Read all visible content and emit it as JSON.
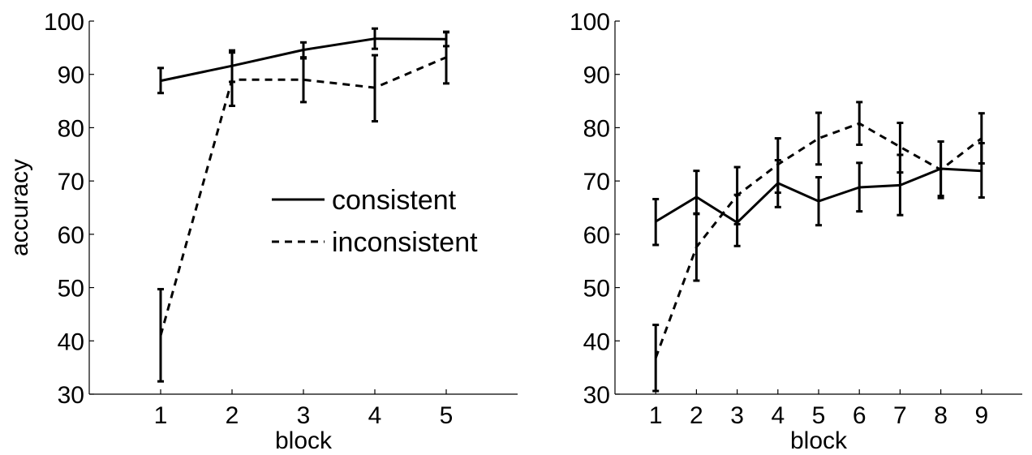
{
  "chart_data": [
    {
      "type": "line",
      "xlabel": "block",
      "ylabel": "accuracy",
      "ylim": [
        30,
        100
      ],
      "xlim": [
        0,
        6
      ],
      "x": [
        1,
        2,
        3,
        4,
        5
      ],
      "xticks": [
        "1",
        "2",
        "3",
        "4",
        "5"
      ],
      "yticks": [
        "30",
        "40",
        "50",
        "60",
        "70",
        "80",
        "90",
        "100"
      ],
      "legend": {
        "position": "center-right",
        "entries": [
          "consistent",
          "inconsistent"
        ]
      },
      "series": [
        {
          "name": "consistent",
          "style": "solid",
          "values": [
            88.8,
            91.6,
            94.6,
            96.7,
            96.6
          ],
          "err_low": [
            86.5,
            88.6,
            93.0,
            94.8,
            95.3
          ],
          "err_high": [
            91.2,
            94.5,
            96.0,
            98.6,
            97.9
          ]
        },
        {
          "name": "inconsistent",
          "style": "dashed",
          "values": [
            41.0,
            89.0,
            89.0,
            87.5,
            93.2
          ],
          "err_low": [
            32.4,
            84.1,
            84.8,
            81.2,
            88.3
          ],
          "err_high": [
            49.7,
            94.1,
            93.2,
            93.6,
            98.0
          ]
        }
      ]
    },
    {
      "type": "line",
      "xlabel": "block",
      "ylim": [
        30,
        100
      ],
      "xlim": [
        0,
        10
      ],
      "x": [
        1,
        2,
        3,
        4,
        5,
        6,
        7,
        8,
        9
      ],
      "xticks": [
        "1",
        "2",
        "3",
        "4",
        "5",
        "6",
        "7",
        "8",
        "9"
      ],
      "yticks": [
        "30",
        "40",
        "50",
        "60",
        "70",
        "80",
        "90",
        "100"
      ],
      "series": [
        {
          "name": "consistent",
          "style": "solid",
          "values": [
            62.4,
            67.0,
            62.2,
            69.6,
            66.2,
            68.8,
            69.2,
            72.3,
            71.9
          ],
          "err_low": [
            58.0,
            63.8,
            57.8,
            65.1,
            61.7,
            64.3,
            63.6,
            67.2,
            66.9
          ],
          "err_high": [
            66.6,
            71.9,
            72.6,
            73.9,
            70.7,
            73.4,
            74.9,
            77.4,
            77.1
          ]
        },
        {
          "name": "inconsistent",
          "style": "dashed",
          "values": [
            36.8,
            57.6,
            67.3,
            73.1,
            78.0,
            80.8,
            76.4,
            72.1,
            78.0
          ],
          "err_low": [
            30.6,
            51.3,
            61.9,
            67.8,
            73.1,
            76.8,
            71.6,
            66.8,
            73.3
          ],
          "err_high": [
            43.0,
            63.9,
            67.4,
            78.0,
            82.8,
            84.8,
            80.9,
            77.4,
            82.7
          ]
        }
      ]
    }
  ]
}
